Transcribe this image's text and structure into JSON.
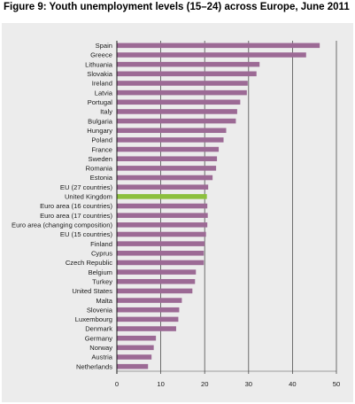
{
  "figure_title": "Figure 9: Youth unemployment levels (15–24) across Europe, June 2011",
  "colors": {
    "bar": "#9c6a95",
    "highlight": "#8cc03d",
    "panel": "#ececec",
    "grid": "#4d4d4d"
  },
  "chart_data": {
    "type": "bar",
    "orientation": "horizontal",
    "title": "Figure 9: Youth unemployment levels (15–24) across Europe, June 2011",
    "xlabel": "",
    "ylabel": "",
    "xlim": [
      0,
      50
    ],
    "ticks": [
      0,
      10,
      20,
      30,
      40,
      50
    ],
    "grid": true,
    "highlight_category": "United Kingdom",
    "categories": [
      "Spain",
      "Greece",
      "Lithuania",
      "Slovakia",
      "Ireland",
      "Latvia",
      "Portugal",
      "Italy",
      "Bulgaria",
      "Hungary",
      "Poland",
      "France",
      "Sweden",
      "Romania",
      "Estonia",
      "EU (27 countries)",
      "United Kingdom",
      "Euro area (16 countries)",
      "Euro area (17 countries)",
      "Euro area (changing composition)",
      "EU (15 countries)",
      "Finland",
      "Cyprus",
      "Czech Republic",
      "Belgium",
      "Turkey",
      "United States",
      "Malta",
      "Slovenia",
      "Luxembourg",
      "Denmark",
      "Germany",
      "Norway",
      "Austria",
      "Netherlands"
    ],
    "values": [
      46.2,
      43.1,
      32.5,
      31.8,
      29.8,
      29.6,
      28.1,
      27.4,
      27.1,
      24.9,
      24.3,
      23.2,
      22.8,
      22.6,
      21.8,
      20.8,
      20.5,
      20.6,
      20.7,
      20.6,
      20.3,
      20.0,
      19.8,
      19.8,
      18.0,
      17.8,
      17.2,
      14.8,
      14.2,
      14.0,
      13.5,
      8.9,
      8.4,
      7.9,
      7.1
    ]
  }
}
